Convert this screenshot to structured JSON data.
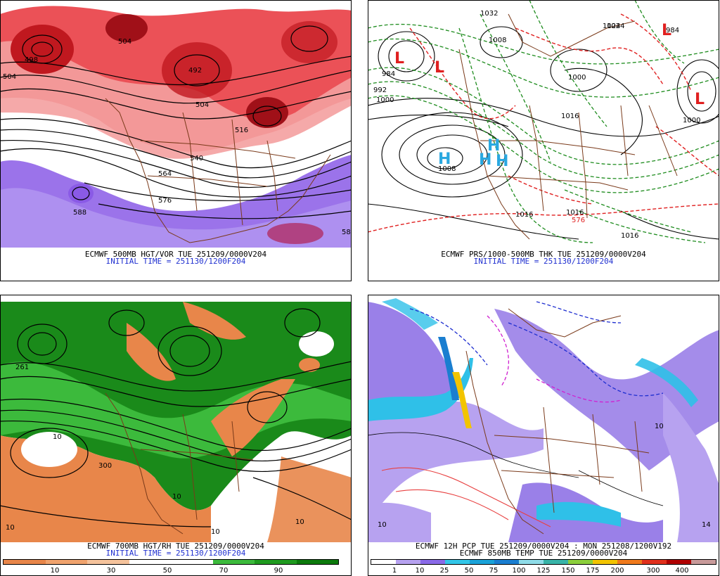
{
  "panels": [
    {
      "id": "p1",
      "caption1": "ECMWF 500MB HGT/VOR TUE 251209/0000V204",
      "caption2": "INITIAL TIME = 251130/1200F204",
      "labels": [
        "498",
        "504",
        "504",
        "492",
        "504",
        "516",
        "540",
        "564",
        "576",
        "588",
        "58"
      ]
    },
    {
      "id": "p2",
      "caption1": "ECMWF PRS/1000-500MB THK TUE 251209/0000V204",
      "caption2": "INITIAL TIME = 251130/1200F204",
      "labels": [
        "984",
        "992",
        "1000",
        "1008",
        "1000",
        "1016",
        "1024",
        "1032",
        "1016",
        "1016",
        "1016",
        "984",
        "1000",
        "1008",
        "576",
        "1024"
      ],
      "centers": {
        "low": "L",
        "high": "H"
      }
    },
    {
      "id": "p3",
      "caption1": "ECMWF 700MB HGT/RH TUE 251209/0000V204",
      "caption2": "INITIAL TIME = 251130/1200F204",
      "labels": [
        "261",
        "300",
        "10",
        "10",
        "10",
        "10",
        "10"
      ],
      "colorbar": {
        "colors": [
          "#e8864a",
          "#f0a36e",
          "#f5c39c",
          "#ffffff",
          "#ffffff",
          "#3cba3c",
          "#1f9a1f",
          "#0c7a0c"
        ],
        "ticks": [
          "10",
          "30",
          "50",
          "70",
          "90"
        ]
      }
    },
    {
      "id": "p4",
      "caption1": "ECMWF 12H PCP TUE 251209/0000V204 : MON 251208/1200V192",
      "caption2": "ECMWF 850MB TEMP TUE 251209/0000V204",
      "labels": [
        "10",
        "10",
        "14"
      ],
      "colorbar": {
        "colors": [
          "#ffffff",
          "#b7a2f0",
          "#8a6ae8",
          "#33c6e8",
          "#1aa2d8",
          "#1a7ed0",
          "#8fdce8",
          "#38b4a8",
          "#8ccf3c",
          "#f2c400",
          "#f07a1c",
          "#e0301c",
          "#b00000",
          "#c89a9a"
        ],
        "ticks": [
          "1",
          "10",
          "25",
          "50",
          "75",
          "100",
          "125",
          "150",
          "175",
          "200",
          "300",
          "400"
        ]
      }
    }
  ],
  "colors": {
    "vorticity_red": "#e8323a",
    "vorticity_pink": "#f4a0a0",
    "vorticity_purple": "#8a5ae6",
    "contour": "#000000",
    "coastline": "#7a3a1a",
    "thickness_green": "#1e8c1e",
    "thickness_red": "#e02020",
    "high_blue": "#2aa8e0",
    "rh_green": "#1a8a1a",
    "rh_orange": "#e8864a",
    "precip_purple": "#9a80e8",
    "precip_cyan": "#2fc0e8"
  }
}
